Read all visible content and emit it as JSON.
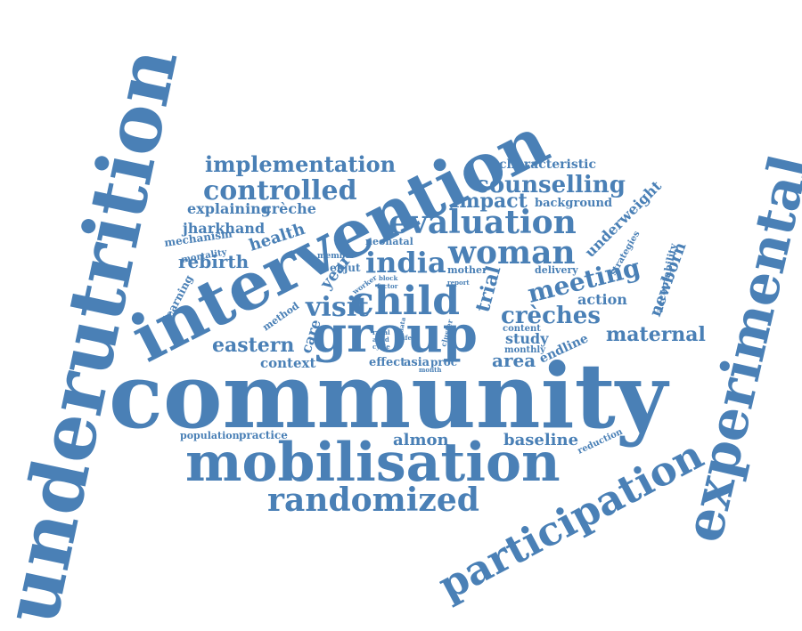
{
  "accent_color": "#4a80b6",
  "words": [
    "underutrition",
    "community",
    "intervention",
    "experimental",
    "mobilisation",
    "participation",
    "group",
    "child",
    "randomized",
    "evaluation",
    "woman",
    "india",
    "implementation",
    "controlled",
    "counselling",
    "characteristic",
    "impact",
    "background",
    "crèches",
    "meeting",
    "maternal",
    "visit",
    "eastern",
    "rebirth",
    "health",
    "jharkhand",
    "explaining",
    "crèche",
    "mechanism",
    "mortality",
    "learning",
    "context",
    "care",
    "year",
    "method",
    "underweight",
    "strategies",
    "acceptability",
    "newborn",
    "action",
    "trial",
    "delivery",
    "content",
    "monthly",
    "study",
    "area",
    "endline",
    "almon",
    "baseline",
    "population",
    "practice",
    "reduction",
    "neonatal",
    "member",
    "ekjut",
    "mother",
    "report",
    "block",
    "factor",
    "worker",
    "rural",
    "aged",
    "safe",
    "cycle",
    "data",
    "cluster",
    "effect",
    "asia",
    "proc",
    "month"
  ]
}
